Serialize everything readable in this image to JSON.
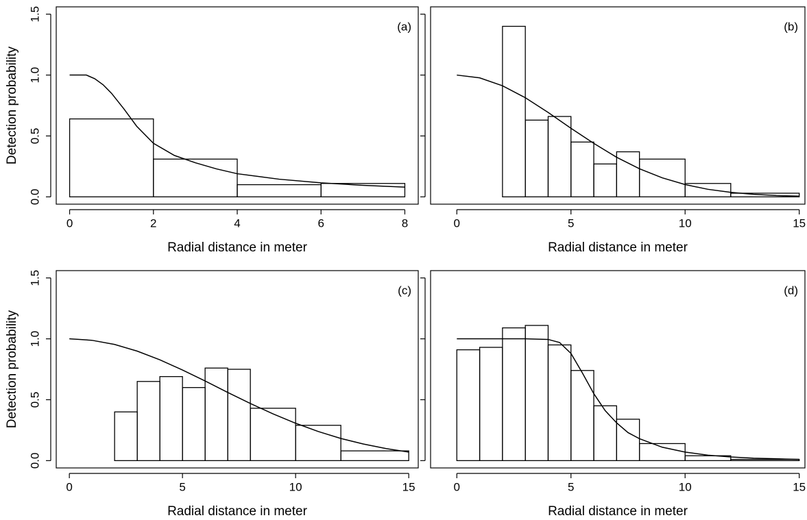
{
  "chart_data": [
    {
      "type": "histogram",
      "panel_label": "(a)",
      "xlabel": "Radial distance in meter",
      "ylabel": "Detection probability",
      "bins": [
        0,
        2,
        4,
        6,
        8
      ],
      "values": [
        0.64,
        0.31,
        0.1,
        0.11
      ],
      "line": {
        "x": [
          0,
          0.2,
          0.4,
          0.6,
          0.8,
          1,
          1.3,
          1.6,
          2,
          2.5,
          3,
          3.5,
          4,
          5,
          6,
          7,
          8
        ],
        "y": [
          1,
          1,
          1,
          0.97,
          0.92,
          0.85,
          0.72,
          0.58,
          0.44,
          0.34,
          0.28,
          0.23,
          0.19,
          0.145,
          0.115,
          0.095,
          0.08
        ]
      },
      "color": "#000000",
      "xlim": [
        -0.32,
        8.32
      ],
      "ylim": [
        -0.06,
        1.56
      ],
      "xticks": [
        0,
        2,
        4,
        6,
        8
      ],
      "yticks": [
        {
          "value": 0,
          "label": "0.0"
        },
        0.5,
        {
          "value": 1,
          "label": "1.0"
        },
        1.5
      ],
      "ytick_labels": true
    },
    {
      "type": "histogram",
      "panel_label": "(b)",
      "xlabel": "Radial distance in meter",
      "bins": [
        2,
        3,
        4,
        5,
        6,
        7,
        8,
        10,
        12,
        15
      ],
      "values": [
        1.4,
        0.63,
        0.66,
        0.45,
        0.27,
        0.37,
        0.31,
        0.11,
        0.03
      ],
      "line": {
        "x": [
          0,
          1,
          2,
          3,
          4,
          5,
          6,
          7,
          8,
          9,
          10,
          11,
          12,
          13,
          14,
          15
        ],
        "y": [
          1,
          0.977,
          0.912,
          0.814,
          0.693,
          0.563,
          0.439,
          0.325,
          0.231,
          0.156,
          0.101,
          0.062,
          0.037,
          0.021,
          0.011,
          0.006
        ]
      },
      "color": "#000000",
      "xlim": [
        -1.15,
        15.25
      ],
      "ylim": [
        -0.06,
        1.56
      ],
      "xticks": [
        0,
        5,
        10,
        15
      ],
      "yticks": [
        0,
        0.5,
        1,
        1.5
      ],
      "ytick_labels": false
    },
    {
      "type": "histogram",
      "panel_label": "(c)",
      "xlabel": "Radial distance in meter",
      "ylabel": "Detection probability",
      "bins": [
        2,
        3,
        4,
        5,
        6,
        7,
        8,
        10,
        12,
        15
      ],
      "values": [
        0.4,
        0.65,
        0.69,
        0.6,
        0.76,
        0.75,
        0.43,
        0.29,
        0.08
      ],
      "line": {
        "x": [
          0,
          1,
          2,
          3,
          4,
          5,
          6,
          7,
          8,
          9,
          10,
          11,
          12,
          13,
          14,
          15
        ],
        "y": [
          1,
          0.988,
          0.954,
          0.899,
          0.828,
          0.744,
          0.654,
          0.56,
          0.469,
          0.384,
          0.307,
          0.239,
          0.182,
          0.136,
          0.099,
          0.07
        ]
      },
      "color": "#000000",
      "xlim": [
        -0.58,
        15.42
      ],
      "ylim": [
        -0.06,
        1.56
      ],
      "xticks": [
        0,
        5,
        10,
        15
      ],
      "yticks": [
        {
          "value": 0,
          "label": "0.0"
        },
        0.5,
        {
          "value": 1,
          "label": "1.0"
        },
        1.5
      ],
      "ytick_labels": true
    },
    {
      "type": "histogram",
      "panel_label": "(d)",
      "xlabel": "Radial distance in meter",
      "bins": [
        0,
        1,
        2,
        3,
        4,
        5,
        6,
        7,
        8,
        10,
        12,
        15
      ],
      "values": [
        0.91,
        0.93,
        1.09,
        1.11,
        0.95,
        0.74,
        0.45,
        0.34,
        0.14,
        0.04,
        0.01
      ],
      "line": {
        "x": [
          0,
          1,
          2,
          3,
          4,
          4.5,
          5,
          5.5,
          6,
          6.5,
          7,
          7.5,
          8,
          9,
          10,
          11,
          12,
          13,
          14,
          15
        ],
        "y": [
          1,
          1,
          1,
          1,
          0.995,
          0.97,
          0.88,
          0.72,
          0.55,
          0.41,
          0.31,
          0.23,
          0.18,
          0.11,
          0.07,
          0.045,
          0.03,
          0.02,
          0.015,
          0.01
        ]
      },
      "color": "#000000",
      "xlim": [
        -1.15,
        15.25
      ],
      "ylim": [
        -0.06,
        1.56
      ],
      "xticks": [
        0,
        5,
        10,
        15
      ],
      "yticks": [
        0,
        0.5,
        1,
        1.5
      ],
      "ytick_labels": false
    }
  ]
}
